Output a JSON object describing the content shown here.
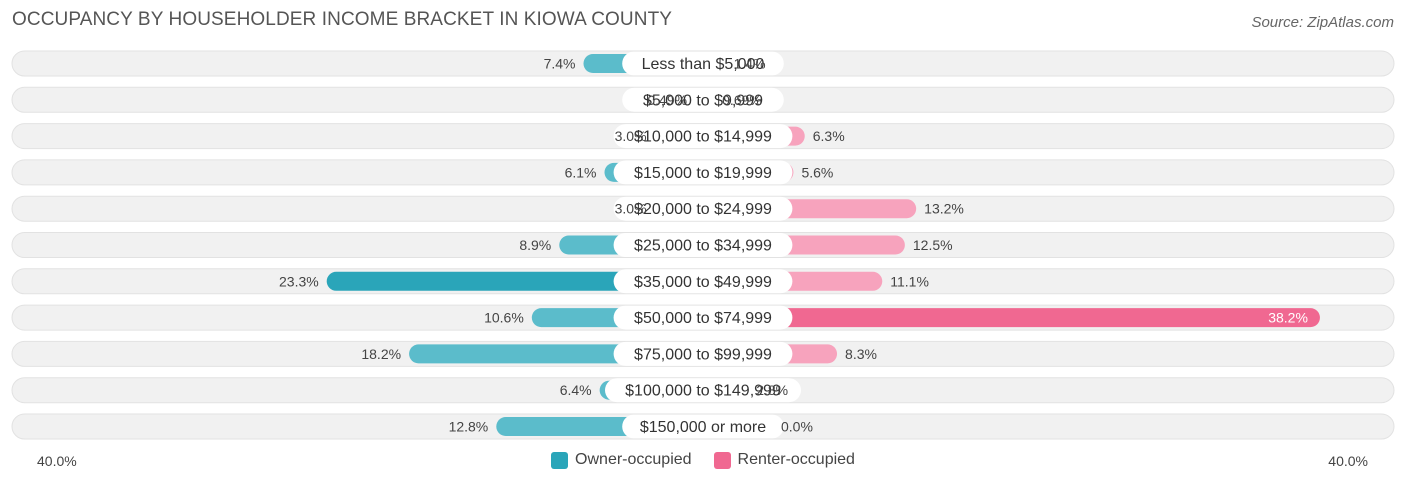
{
  "title": "OCCUPANCY BY HOUSEHOLDER INCOME BRACKET IN KIOWA COUNTY",
  "source": "Source: ZipAtlas.com",
  "colors": {
    "owner": "#5bbccb",
    "owner_strong": "#2aa5b9",
    "renter": "#f7a3bd",
    "renter_strong": "#f06891",
    "track": "#f1f1f1",
    "track_border": "#e2e2e2"
  },
  "chart_data": {
    "type": "bar",
    "title": "OCCUPANCY BY HOUSEHOLDER INCOME BRACKET IN KIOWA COUNTY",
    "categories": [
      "Less than $5,000",
      "$5,000 to $9,999",
      "$10,000 to $14,999",
      "$15,000 to $19,999",
      "$20,000 to $24,999",
      "$25,000 to $34,999",
      "$35,000 to $49,999",
      "$50,000 to $74,999",
      "$75,000 to $99,999",
      "$100,000 to $149,999",
      "$150,000 or more"
    ],
    "series": [
      {
        "name": "Owner-occupied",
        "values": [
          7.4,
          0.49,
          3.0,
          6.1,
          3.0,
          8.9,
          23.3,
          10.6,
          18.2,
          6.4,
          12.8
        ],
        "labels": [
          "7.4%",
          "0.49%",
          "3.0%",
          "6.1%",
          "3.0%",
          "8.9%",
          "23.3%",
          "10.6%",
          "18.2%",
          "6.4%",
          "12.8%"
        ]
      },
      {
        "name": "Renter-occupied",
        "values": [
          1.4,
          0.69,
          6.3,
          5.6,
          13.2,
          12.5,
          11.1,
          38.2,
          8.3,
          2.8,
          0.0
        ],
        "labels": [
          "1.4%",
          "0.69%",
          "6.3%",
          "5.6%",
          "13.2%",
          "12.5%",
          "11.1%",
          "38.2%",
          "8.3%",
          "2.8%",
          "0.0%"
        ]
      }
    ],
    "xlim": [
      -40,
      40
    ],
    "axis_left_label": "40.0%",
    "axis_right_label": "40.0%",
    "legend_position": "bottom-center"
  }
}
